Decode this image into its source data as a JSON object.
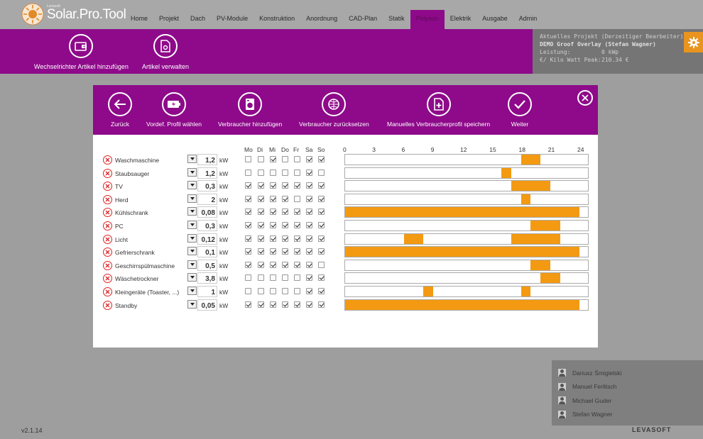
{
  "app": {
    "brand": "Solar.Pro.Tool",
    "brand_small": "Levasoft",
    "version": "v2.1.14",
    "company": "LEVASOFT"
  },
  "nav": [
    "Home",
    "Projekt",
    "Dach",
    "PV-Module",
    "Konstruktion",
    "Anordnung",
    "CAD-Plan",
    "Statik",
    "Polysun",
    "Elektrik",
    "Ausgabe",
    "Admin"
  ],
  "nav_active": 8,
  "toolbar": {
    "add_inverter": "Wechselrichter Artikel hinzufügen",
    "manage_articles": "Artikel verwalten"
  },
  "project": {
    "heading": "Aktuelles Projekt (Derzeitiger Bearbeiter):",
    "name": "DEMO Groof Overlay (Stefan Wagner)",
    "power_label": "Leistung:",
    "power_value": "0 kWp",
    "price_label": "€/ Kilo Watt Peak:",
    "price_value": "210.34 €"
  },
  "users": [
    "Dariusz Śmigielski",
    "Manuel Ferlitsch",
    "Michael Guder",
    "Stefan Wagner"
  ],
  "dialog": {
    "buttons": {
      "back": "Zurück",
      "preset": "Vordef. Profil wählen",
      "add_consumer": "Verbraucher hinzufügen",
      "reset_consumer": "Verbraucher zurücksetzen",
      "save_profile": "Manuelles Verbraucherprofil speichern",
      "next": "Weiter"
    },
    "days": [
      "Mo",
      "Di",
      "Mi",
      "Do",
      "Fr",
      "Sa",
      "So"
    ],
    "hour_ticks": [
      "0",
      "3",
      "6",
      "9",
      "12",
      "15",
      "18",
      "21",
      "24"
    ],
    "unit": "kW",
    "consumers": [
      {
        "name": "Waschmaschine",
        "power": "1,2",
        "days": [
          false,
          false,
          true,
          false,
          false,
          true,
          true
        ],
        "usage_hours": [
          [
            18,
            20
          ]
        ]
      },
      {
        "name": "Staubsauger",
        "power": "1,2",
        "days": [
          false,
          false,
          false,
          false,
          false,
          true,
          false
        ],
        "usage_hours": [
          [
            16,
            17
          ]
        ]
      },
      {
        "name": "TV",
        "power": "0,3",
        "days": [
          true,
          true,
          true,
          true,
          true,
          true,
          true
        ],
        "usage_hours": [
          [
            17,
            21
          ]
        ]
      },
      {
        "name": "Herd",
        "power": "2",
        "days": [
          true,
          true,
          true,
          true,
          false,
          true,
          true
        ],
        "usage_hours": [
          [
            18,
            19
          ]
        ]
      },
      {
        "name": "Kühlschrank",
        "power": "0,08",
        "days": [
          true,
          true,
          true,
          true,
          true,
          true,
          true
        ],
        "usage_hours": [
          [
            0,
            24
          ]
        ]
      },
      {
        "name": "PC",
        "power": "0,3",
        "days": [
          true,
          true,
          true,
          true,
          true,
          true,
          true
        ],
        "usage_hours": [
          [
            19,
            22
          ]
        ]
      },
      {
        "name": "Licht",
        "power": "0,12",
        "days": [
          true,
          true,
          true,
          true,
          true,
          true,
          true
        ],
        "usage_hours": [
          [
            6,
            8
          ],
          [
            17,
            22
          ]
        ]
      },
      {
        "name": "Gefrierschrank",
        "power": "0,1",
        "days": [
          true,
          true,
          true,
          true,
          true,
          true,
          true
        ],
        "usage_hours": [
          [
            0,
            24
          ]
        ]
      },
      {
        "name": "Geschirrspülmaschine",
        "power": "0,5",
        "days": [
          true,
          true,
          true,
          true,
          true,
          true,
          false
        ],
        "usage_hours": [
          [
            19,
            21
          ]
        ]
      },
      {
        "name": "Wäschetrockner",
        "power": "3,8",
        "days": [
          false,
          false,
          false,
          false,
          false,
          true,
          true
        ],
        "usage_hours": [
          [
            20,
            22
          ]
        ]
      },
      {
        "name": "Kleingeräte (Toaster, ...)",
        "power": "1",
        "days": [
          false,
          false,
          false,
          false,
          false,
          true,
          true
        ],
        "usage_hours": [
          [
            8,
            9
          ],
          [
            18,
            19
          ]
        ]
      },
      {
        "name": "Standby",
        "power": "0,05",
        "days": [
          true,
          true,
          true,
          true,
          true,
          true,
          true
        ],
        "usage_hours": [
          [
            0,
            24
          ]
        ]
      }
    ]
  },
  "colors": {
    "purple": "#8e0a8a",
    "orange": "#f39a12",
    "accent_gear": "#e8941e"
  }
}
